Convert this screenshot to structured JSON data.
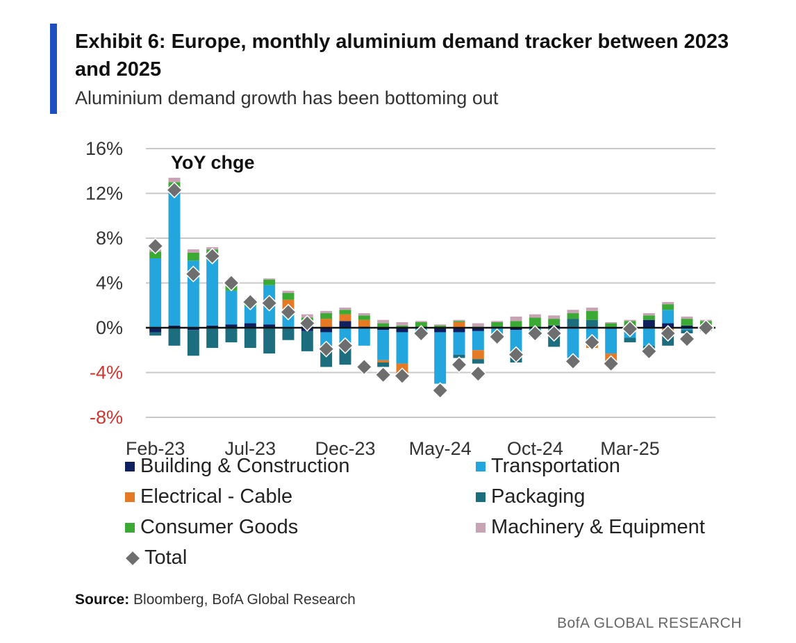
{
  "header": {
    "title": "Exhibit 6: Europe, monthly aluminium demand tracker between 2023 and 2025",
    "subtitle": "Aluminium demand growth has been bottoming out"
  },
  "footer": {
    "source_label": "Source:",
    "source_text": " Bloomberg, BofA Global Research",
    "brand": "BofA GLOBAL RESEARCH"
  },
  "chart_data": {
    "type": "bar",
    "stacked": true,
    "annotation": "YoY chge",
    "y_ticks": [
      "16%",
      "12%",
      "8%",
      "4%",
      "0%",
      "-4%",
      "-8%"
    ],
    "ylim": [
      -8,
      16
    ],
    "x_tick_labels": [
      {
        "index": 0,
        "label": "Feb-23"
      },
      {
        "index": 5,
        "label": "Jul-23"
      },
      {
        "index": 10,
        "label": "Dec-23"
      },
      {
        "index": 15,
        "label": "May-24"
      },
      {
        "index": 20,
        "label": "Oct-24"
      },
      {
        "index": 25,
        "label": "Mar-25"
      }
    ],
    "categories": [
      "Feb-23",
      "Mar-23",
      "Apr-23",
      "May-23",
      "Jun-23",
      "Jul-23",
      "Aug-23",
      "Sep-23",
      "Oct-23",
      "Nov-23",
      "Dec-23",
      "Jan-24",
      "Feb-24",
      "Mar-24",
      "Apr-24",
      "May-24",
      "Jun-24",
      "Jul-24",
      "Aug-24",
      "Sep-24",
      "Oct-24",
      "Nov-24",
      "Dec-24",
      "Jan-25",
      "Feb-25",
      "Mar-25",
      "Apr-25",
      "May-25",
      "Jun-25",
      "Jul-25"
    ],
    "series": [
      {
        "name": "Building & Construction",
        "color": "#10205e",
        "values": [
          -0.4,
          0.2,
          -0.2,
          0.2,
          0.3,
          0.4,
          0.3,
          -0.1,
          -0.3,
          -0.4,
          0.6,
          0.1,
          -0.2,
          -0.4,
          0.1,
          -0.4,
          -0.4,
          -0.3,
          0.1,
          -0.2,
          0.1,
          0.2,
          0.1,
          0.1,
          -0.1,
          0.1,
          0.7,
          0.4,
          0.2,
          0.0
        ]
      },
      {
        "name": "Transportation",
        "color": "#23a6de",
        "values": [
          6.2,
          12.0,
          6.0,
          6.2,
          3.0,
          1.5,
          3.5,
          1.5,
          0.4,
          -1.6,
          -1.5,
          -1.6,
          -2.7,
          -2.8,
          -0.7,
          -4.6,
          -2.0,
          -1.7,
          -0.6,
          -2.3,
          -0.8,
          -0.7,
          -2.7,
          -1.5,
          -2.2,
          -0.9,
          -1.6,
          1.2,
          -0.2,
          0.0
        ]
      },
      {
        "name": "Electrical - Cable",
        "color": "#e67a24",
        "values": [
          0.0,
          0.0,
          0.0,
          0.0,
          0.0,
          0.0,
          0.0,
          1.0,
          0.0,
          0.8,
          0.6,
          0.6,
          -0.2,
          -0.9,
          0.0,
          0.0,
          0.5,
          -0.8,
          0.0,
          0.0,
          0.0,
          0.0,
          0.0,
          -0.3,
          -0.7,
          0.0,
          0.0,
          -0.7,
          0.0,
          0.0
        ]
      },
      {
        "name": "Packaging",
        "color": "#1c6e7e",
        "values": [
          -0.3,
          -1.6,
          -2.3,
          -1.8,
          -1.3,
          -1.8,
          -2.3,
          -1.0,
          -1.8,
          -1.5,
          -1.8,
          0.0,
          -0.4,
          -0.2,
          0.0,
          0.0,
          -0.3,
          -0.4,
          0.0,
          -0.6,
          0.0,
          -1.0,
          0.7,
          0.6,
          0.0,
          -0.4,
          -0.7,
          -0.9,
          -0.3,
          -0.3
        ]
      },
      {
        "name": "Consumer Goods",
        "color": "#3aaa35",
        "values": [
          0.6,
          0.8,
          0.7,
          0.6,
          0.8,
          0.6,
          0.5,
          0.6,
          0.5,
          0.5,
          0.4,
          0.4,
          0.4,
          0.2,
          0.4,
          0.2,
          0.1,
          0.1,
          0.4,
          0.6,
          0.8,
          0.6,
          0.5,
          0.8,
          0.4,
          0.5,
          0.4,
          0.5,
          0.6,
          0.6
        ]
      },
      {
        "name": "Machinery & Equipment",
        "color": "#c7a3b3",
        "values": [
          0.2,
          0.4,
          0.3,
          0.2,
          0.1,
          0.1,
          0.1,
          0.2,
          0.3,
          0.2,
          0.2,
          0.2,
          0.3,
          0.3,
          0.1,
          0.1,
          0.1,
          0.3,
          0.1,
          0.4,
          0.3,
          0.3,
          0.3,
          0.3,
          0.1,
          0.1,
          0.2,
          0.2,
          0.2,
          0.1
        ]
      }
    ],
    "total": {
      "name": "Total",
      "color": "#6e6e6e",
      "values": [
        7.3,
        12.3,
        4.8,
        6.4,
        4.0,
        2.3,
        2.2,
        1.4,
        0.4,
        -1.9,
        -1.6,
        -3.5,
        -4.2,
        -4.3,
        -0.5,
        -5.6,
        -3.3,
        -4.1,
        -0.8,
        -2.4,
        -0.5,
        -0.5,
        -3.0,
        -1.3,
        -3.2,
        -0.1,
        -2.1,
        -0.5,
        -1.0,
        0.0
      ]
    },
    "grid": true,
    "legend_position": "bottom"
  }
}
